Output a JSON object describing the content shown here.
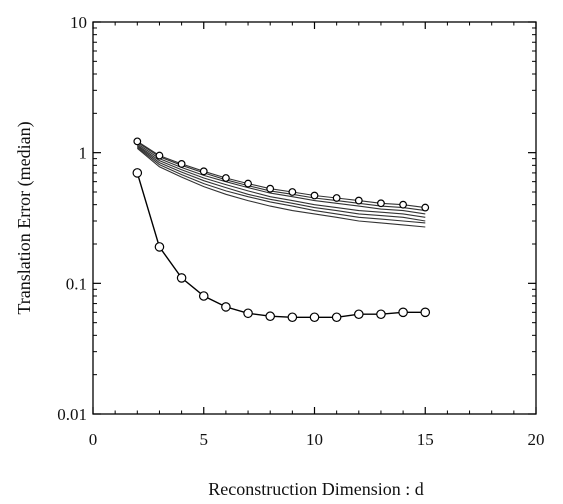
{
  "chart_data": {
    "type": "line",
    "title": "",
    "xlabel": "Reconstruction Dimension : d",
    "ylabel": "Translation Error (median)",
    "xlim": [
      0,
      20
    ],
    "ylim": [
      0.01,
      10
    ],
    "yscale": "log",
    "grid": false,
    "legend": "none",
    "x_ticks": [
      0,
      5,
      10,
      15,
      20
    ],
    "x_tick_labels": [
      "0",
      "5",
      "10",
      "15",
      "20"
    ],
    "y_ticks": [
      0.01,
      0.1,
      1,
      10
    ],
    "y_tick_labels": [
      "0.01",
      "0.1",
      "1",
      "10"
    ],
    "x": [
      2,
      3,
      4,
      5,
      6,
      7,
      8,
      9,
      10,
      11,
      12,
      13,
      14,
      15
    ],
    "series": [
      {
        "marker": "circle-open",
        "values": [
          0.7,
          0.19,
          0.11,
          0.08,
          0.066,
          0.059,
          0.056,
          0.055,
          0.055,
          0.055,
          0.058,
          0.058,
          0.06,
          0.06
        ]
      },
      {
        "marker": "circle-open",
        "values": [
          1.22,
          0.95,
          0.82,
          0.72,
          0.64,
          0.58,
          0.53,
          0.5,
          0.47,
          0.45,
          0.43,
          0.41,
          0.4,
          0.38
        ]
      },
      {
        "marker": "none",
        "values": [
          1.2,
          0.93,
          0.8,
          0.7,
          0.62,
          0.56,
          0.51,
          0.48,
          0.45,
          0.43,
          0.41,
          0.39,
          0.38,
          0.36
        ]
      },
      {
        "marker": "none",
        "values": [
          1.17,
          0.9,
          0.77,
          0.67,
          0.6,
          0.54,
          0.49,
          0.46,
          0.43,
          0.41,
          0.39,
          0.37,
          0.36,
          0.34
        ]
      },
      {
        "marker": "none",
        "values": [
          1.14,
          0.87,
          0.74,
          0.64,
          0.57,
          0.51,
          0.46,
          0.43,
          0.4,
          0.38,
          0.36,
          0.35,
          0.34,
          0.32
        ]
      },
      {
        "marker": "none",
        "values": [
          1.12,
          0.84,
          0.71,
          0.61,
          0.54,
          0.48,
          0.44,
          0.41,
          0.38,
          0.36,
          0.34,
          0.33,
          0.32,
          0.3
        ]
      },
      {
        "marker": "none",
        "values": [
          1.1,
          0.81,
          0.68,
          0.58,
          0.51,
          0.46,
          0.42,
          0.39,
          0.36,
          0.34,
          0.32,
          0.31,
          0.3,
          0.29
        ]
      },
      {
        "marker": "none",
        "values": [
          1.08,
          0.78,
          0.65,
          0.55,
          0.48,
          0.43,
          0.39,
          0.36,
          0.34,
          0.32,
          0.3,
          0.29,
          0.28,
          0.27
        ]
      }
    ]
  }
}
